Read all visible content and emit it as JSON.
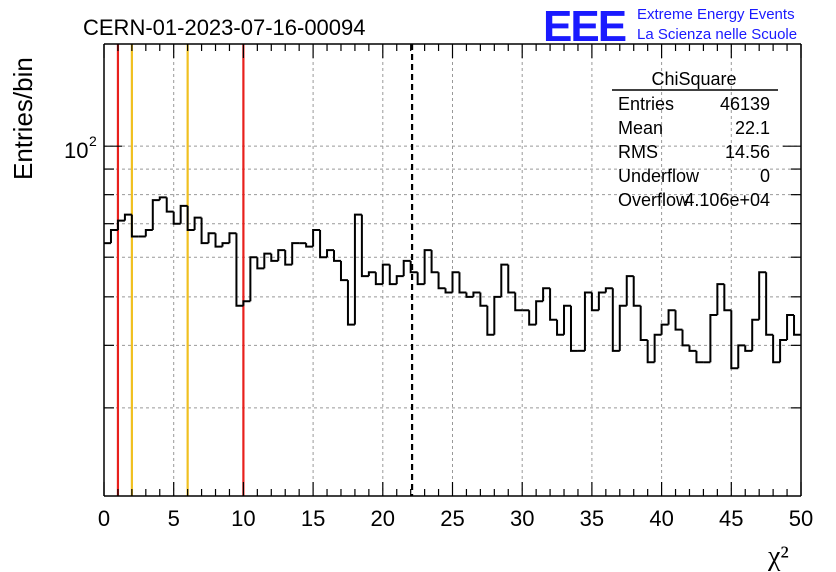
{
  "header": {
    "run_title": "CERN-01-2023-07-16-00094",
    "logo_text": "EEE",
    "logo_line1": "Extreme Energy Events",
    "logo_line2": "La Scienza nelle Scuole"
  },
  "colors": {
    "logo": "#1a1aff",
    "red_line": "#e8201c",
    "yellow_line": "#f0c020",
    "grid": "#999999",
    "histogram": "#000000"
  },
  "stats_box": {
    "title": "ChiSquare",
    "rows": [
      {
        "label": "Entries",
        "value": "46139"
      },
      {
        "label": "Mean",
        "value": "22.1"
      },
      {
        "label": "RMS",
        "value": "14.56"
      },
      {
        "label": "Underflow",
        "value": "0"
      },
      {
        "label": "Overflow",
        "value": "4.106e+04"
      }
    ]
  },
  "chart_data": {
    "type": "histogram",
    "title": "CERN-01-2023-07-16-00094",
    "xlabel": "χ²",
    "ylabel": "Entries/bin",
    "xlim": [
      0,
      50
    ],
    "ylim": [
      20,
      160
    ],
    "yscale": "log",
    "grid": true,
    "xticks": [
      "0",
      "5",
      "10",
      "15",
      "20",
      "25",
      "30",
      "35",
      "40",
      "45",
      "50"
    ],
    "yticks_labeled": [
      {
        "value": 100,
        "base": "10",
        "exponent": "2"
      }
    ],
    "bin_width": 0.5,
    "bin_counts": [
      64,
      68,
      71,
      73,
      66,
      66,
      68,
      78,
      79,
      74,
      70,
      76,
      68,
      72,
      64,
      67,
      63,
      64,
      67,
      48,
      49,
      60,
      57,
      61,
      59,
      62,
      58,
      64,
      64,
      63,
      68,
      60,
      62,
      59,
      54,
      44,
      73,
      55,
      56,
      53,
      58,
      53,
      55,
      59,
      56,
      53,
      62,
      56,
      52,
      51,
      56,
      51,
      50,
      51,
      48,
      42,
      50,
      58,
      51,
      47,
      47,
      44,
      49,
      52,
      45,
      42,
      48,
      39,
      39,
      51,
      47,
      51,
      52,
      39,
      48,
      55,
      48,
      41,
      37,
      42,
      44,
      47,
      43,
      40,
      39,
      37,
      37,
      46,
      53,
      47,
      36,
      40,
      39,
      45,
      56,
      42,
      37,
      41,
      46,
      42
    ],
    "vertical_lines": [
      {
        "x": 1,
        "color": "red",
        "style": "solid"
      },
      {
        "x": 2,
        "color": "yellow",
        "style": "solid"
      },
      {
        "x": 6,
        "color": "yellow",
        "style": "solid"
      },
      {
        "x": 10,
        "color": "red",
        "style": "solid"
      },
      {
        "x": 22.1,
        "color": "black",
        "style": "dashed"
      }
    ]
  }
}
